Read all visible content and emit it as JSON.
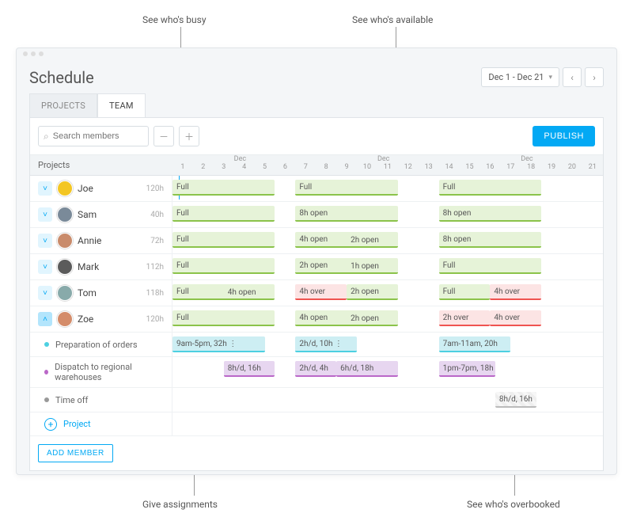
{
  "annotations": {
    "busy": "See who's busy",
    "available": "See who's available",
    "assignments": "Give assignments",
    "overbooked": "See who's overbooked"
  },
  "title": "Schedule",
  "dateRange": "Dec 1 - Dec 21",
  "tabs": {
    "projects": "PROJECTS",
    "team": "TEAM"
  },
  "search": {
    "placeholder": "Search members"
  },
  "publish": "PUBLISH",
  "gridHeader": "Projects",
  "monthLabel": "Dec",
  "days": [
    1,
    2,
    3,
    4,
    5,
    6,
    7,
    8,
    9,
    10,
    11,
    12,
    13,
    14,
    15,
    16,
    17,
    18,
    19,
    20,
    21
  ],
  "todayIndex": 0,
  "dayWidthPct": 4.76,
  "members": [
    {
      "name": "Joe",
      "hours": "120h",
      "avatar": "#f3c623",
      "expanded": false,
      "bars": [
        {
          "seg": 0,
          "cls": "green",
          "label": "Full"
        },
        {
          "seg": 1,
          "cls": "green",
          "label": "Full"
        },
        {
          "seg": 2,
          "cls": "green",
          "label": "Full"
        }
      ]
    },
    {
      "name": "Sam",
      "hours": "40h",
      "avatar": "#7a8a99",
      "expanded": false,
      "bars": [
        {
          "seg": 0,
          "cls": "green",
          "label": "Full"
        },
        {
          "seg": 1,
          "cls": "green",
          "label": "8h open"
        },
        {
          "seg": 2,
          "cls": "green",
          "label": "8h open"
        }
      ]
    },
    {
      "name": "Annie",
      "hours": "72h",
      "avatar": "#c98b6b",
      "expanded": false,
      "bars": [
        {
          "seg": 0,
          "cls": "green",
          "label": "Full"
        },
        {
          "seg": 1,
          "cls": "green",
          "label": "4h open",
          "split": "2h open"
        },
        {
          "seg": 2,
          "cls": "green",
          "label": "8h open"
        }
      ]
    },
    {
      "name": "Mark",
      "hours": "112h",
      "avatar": "#5b5b5b",
      "expanded": false,
      "bars": [
        {
          "seg": 0,
          "cls": "green",
          "label": "Full"
        },
        {
          "seg": 1,
          "cls": "green",
          "label": "2h open",
          "split": "1h open"
        },
        {
          "seg": 2,
          "cls": "green",
          "label": "Full"
        }
      ]
    },
    {
      "name": "Tom",
      "hours": "118h",
      "avatar": "#8aa",
      "expanded": false,
      "bars": [
        {
          "seg": 0,
          "cls": "green",
          "label": "Full",
          "split": "4h open"
        },
        {
          "seg": 1,
          "cls": "red",
          "label": "4h over",
          "rsplit": "2h open",
          "rcls": "green"
        },
        {
          "seg": 2,
          "cls": "green",
          "label": "Full",
          "rsplit": "4h over",
          "rcls": "red"
        }
      ]
    },
    {
      "name": "Zoe",
      "hours": "120h",
      "avatar": "#d48c6a",
      "expanded": true,
      "bars": [
        {
          "seg": 0,
          "cls": "green",
          "label": "Full"
        },
        {
          "seg": 1,
          "cls": "green",
          "label": "4h open",
          "split": "2h open"
        },
        {
          "seg": 2,
          "cls": "red",
          "label": "2h over",
          "rsplit": "4h over",
          "rcls": "red"
        }
      ]
    }
  ],
  "subrows": [
    {
      "name": "Preparation of orders",
      "dot": "#4dd0e1",
      "bars": [
        {
          "seg": 0,
          "w": 0.9,
          "cls": "teal",
          "label": "9am-5pm, 32h ⋮"
        },
        {
          "seg": 1,
          "w": 0.6,
          "cls": "teal",
          "label": "2h/d, 10h ⋮"
        },
        {
          "seg": 2,
          "w": 0.7,
          "cls": "teal",
          "label": "7am-11am, 20h"
        }
      ]
    },
    {
      "name": "Dispatch to regional warehouses",
      "dot": "#ba68c8",
      "bars": [
        {
          "seg": 0,
          "off": 0.5,
          "w": 0.5,
          "cls": "purple",
          "label": "8h/d, 16h"
        },
        {
          "seg": 1,
          "w": 0.4,
          "cls": "purple",
          "label": "2h/d, 4h",
          "rlabel": "6h/d, 18h",
          "rw": 0.6
        },
        {
          "seg": 2,
          "w": 0.55,
          "cls": "purple",
          "label": "1pm-7pm, 18h"
        }
      ]
    },
    {
      "name": "Time off",
      "dot": "#999",
      "bars": [
        {
          "seg": 2,
          "off": 0.55,
          "w": 0.4,
          "cls": "hatch",
          "label": "8h/d, 16h"
        }
      ]
    }
  ],
  "projectBtn": "Project",
  "addMember": "ADD MEMBER",
  "segments": [
    {
      "start": 0,
      "w": 5
    },
    {
      "start": 6,
      "w": 5
    },
    {
      "start": 13,
      "w": 5
    }
  ]
}
